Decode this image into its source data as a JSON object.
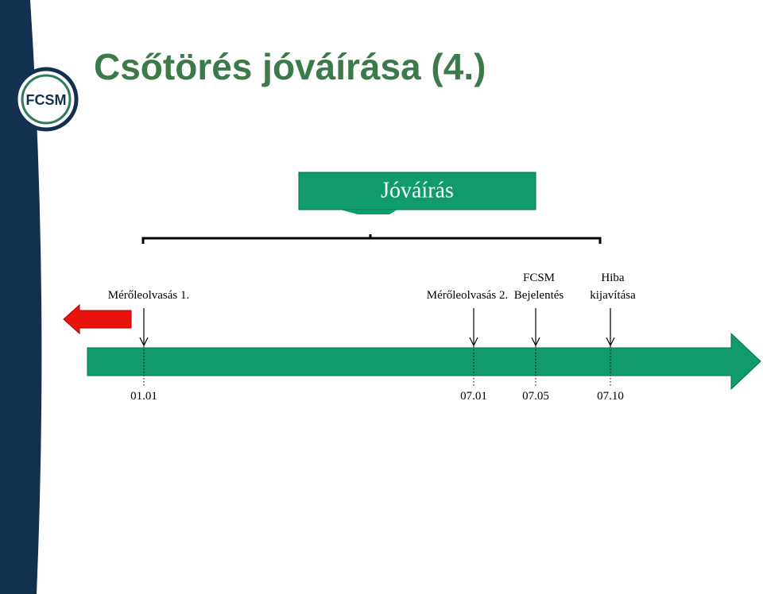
{
  "title": "Csőtörés jóváírása (4.)",
  "logo": "FCSM",
  "credit_box": {
    "label": "Jóváírás"
  },
  "events": [
    {
      "label": [
        "Mérőleolvasás 1."
      ],
      "date": "01.01"
    },
    {
      "label": [
        "Mérőleolvasás 2."
      ],
      "date": "07.01"
    },
    {
      "label": [
        "FCSM",
        "Bejelentés"
      ],
      "date": "07.05"
    },
    {
      "label": [
        "Hiba",
        "kijavítása"
      ],
      "date": "07.10"
    }
  ]
}
